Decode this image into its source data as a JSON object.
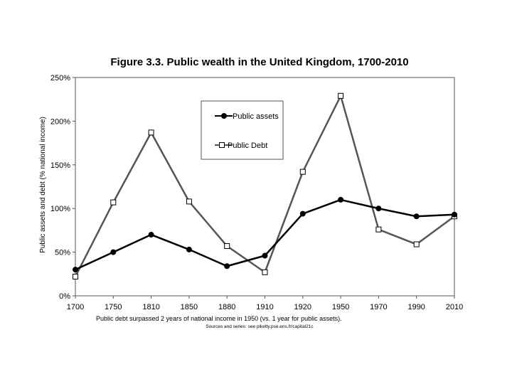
{
  "chart_data": {
    "type": "line",
    "title": "Figure 3.3. Public wealth in the United Kingdom, 1700-2010",
    "xlabel": "",
    "ylabel": "Public assets and debt (% national income)",
    "categories": [
      "1700",
      "1750",
      "1810",
      "1850",
      "1880",
      "1910",
      "1920",
      "1950",
      "1970",
      "1990",
      "2010"
    ],
    "yticks": [
      "0%",
      "50%",
      "100%",
      "150%",
      "200%",
      "250%"
    ],
    "ylim": [
      0,
      250
    ],
    "grid": false,
    "legend_position": "top-center",
    "series": [
      {
        "name": "Public assets",
        "marker": "filled-circle",
        "color": "#000000",
        "values": [
          30,
          50,
          70,
          53,
          34,
          46,
          94,
          110,
          100,
          91,
          93
        ]
      },
      {
        "name": "Public Debt",
        "marker": "open-square",
        "color": "#555555",
        "values": [
          22,
          107,
          187,
          108,
          57,
          27,
          142,
          229,
          76,
          59,
          91
        ]
      }
    ],
    "note": "Public debt surpassed 2 years of national income in 1950 (vs. 1 year for public assets).",
    "source": "Sources and series: see piketty.pse.ens.fr/capital21c"
  }
}
